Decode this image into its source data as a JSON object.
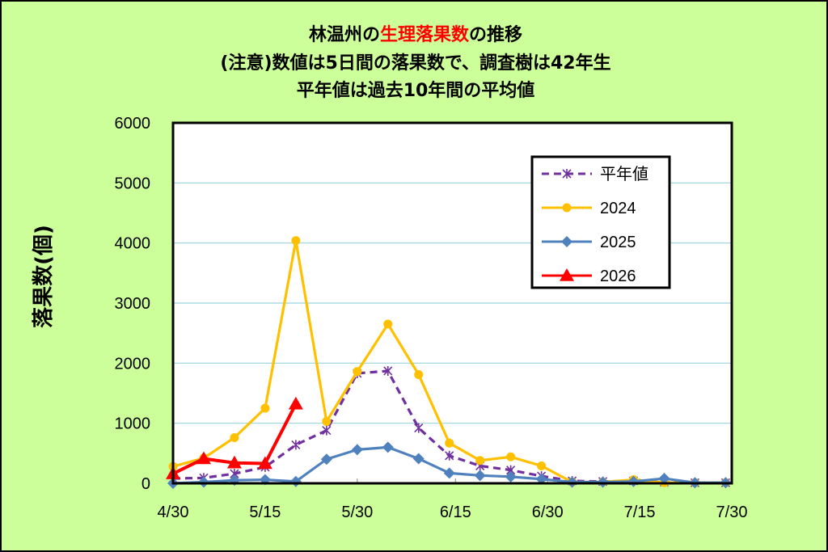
{
  "chart_data": {
    "type": "line",
    "title_lines": [
      [
        {
          "text": "林温州の",
          "color": "#000000"
        },
        {
          "text": "生理落果数",
          "color": "#ff0000"
        },
        {
          "text": "の推移",
          "color": "#000000"
        }
      ],
      [
        {
          "text": "(注意)数値は5日間の落果数で、調査樹は42年生",
          "color": "#000000"
        }
      ],
      [
        {
          "text": "平年値は過去10年間の平均値",
          "color": "#000000"
        }
      ]
    ],
    "ylabel": "落果数(個)",
    "xlabel": "",
    "ylim": [
      0,
      6000
    ],
    "yticks": [
      0,
      1000,
      2000,
      3000,
      4000,
      5000,
      6000
    ],
    "xlim": [
      0,
      91
    ],
    "xticks": [
      {
        "x": 0,
        "label": "4/30"
      },
      {
        "x": 15,
        "label": "5/15"
      },
      {
        "x": 30,
        "label": "5/30"
      },
      {
        "x": 46,
        "label": "6/15"
      },
      {
        "x": 61,
        "label": "6/30"
      },
      {
        "x": 76,
        "label": "7/15"
      },
      {
        "x": 91,
        "label": "7/30"
      }
    ],
    "grid": true,
    "legend_position": "top-right",
    "series": [
      {
        "name": "平年値",
        "color": "#7030a0",
        "style": "dashed",
        "marker": "star",
        "x": [
          0,
          5,
          10,
          15,
          20,
          25,
          30,
          35,
          40,
          45,
          50,
          55,
          60,
          65,
          70,
          75,
          80,
          85,
          90
        ],
        "values": [
          80,
          90,
          160,
          270,
          640,
          880,
          1830,
          1870,
          920,
          460,
          290,
          220,
          120,
          40,
          30,
          40,
          20,
          10,
          10
        ]
      },
      {
        "name": "2024",
        "color": "#ffc000",
        "style": "solid",
        "marker": "circle",
        "x": [
          0,
          5,
          10,
          15,
          20,
          25,
          30,
          35,
          40,
          45,
          50,
          55,
          60,
          65,
          70,
          75,
          80,
          85,
          90
        ],
        "values": [
          280,
          420,
          760,
          1250,
          4040,
          1030,
          1860,
          2650,
          1810,
          670,
          380,
          440,
          290,
          20,
          20,
          60,
          10,
          10,
          10
        ]
      },
      {
        "name": "2025",
        "color": "#4f81bd",
        "style": "solid",
        "marker": "diamond",
        "x": [
          0,
          5,
          10,
          15,
          20,
          25,
          30,
          35,
          40,
          45,
          50,
          55,
          60,
          65,
          70,
          75,
          80,
          85,
          90
        ],
        "values": [
          0,
          20,
          50,
          60,
          30,
          400,
          560,
          600,
          410,
          170,
          130,
          110,
          70,
          20,
          20,
          30,
          80,
          10,
          10
        ]
      },
      {
        "name": "2026",
        "color": "#ff0000",
        "style": "solid",
        "marker": "triangle",
        "x": [
          0,
          5,
          10,
          15,
          20
        ],
        "values": [
          160,
          410,
          340,
          330,
          1320
        ]
      }
    ]
  }
}
